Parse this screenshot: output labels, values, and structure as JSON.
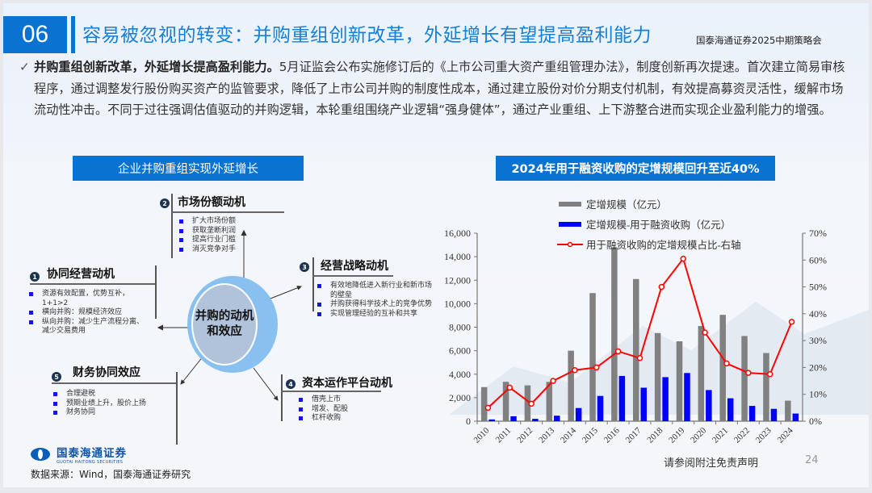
{
  "header": {
    "section_number": "06",
    "title": "容易被忽视的转变：并购重组创新改革，外延增长有望提高盈利能力",
    "event": "国泰海通证券2025中期策略会"
  },
  "body": {
    "check_icon": "✓",
    "bold_lead": "并购重组创新改革，外延增长提高盈利能力。",
    "text": "5月证监会公布实施修订后的《上市公司重大资产重组管理办法》，制度创新再次提速。首次建立简易审核程序，通过调整发行股份购买资产的监管要求，降低了上市公司并购的制度性成本，通过建立股份对价分期支付机制，有效提高募资灵活性，缓解市场流动性冲击。不同于过往强调估值驱动的并购逻辑，本轮重组围绕产业逻辑“强身健体”，通过产业重组、上下游整合进而实现企业盈利能力的增强。"
  },
  "left_panel": {
    "header": "企业并购重组实现外延增长",
    "center_label_1": "并购的动机",
    "center_label_2": "和效应",
    "nodes": [
      {
        "num": "1",
        "title": "协同经营动机",
        "items": [
          "资源有效配置，优势互补，1+1>2",
          "横向并购：规模经济效应",
          "纵向并购：减少生产流程分离、减少交易费用"
        ]
      },
      {
        "num": "2",
        "title": "市场份额动机",
        "items": [
          "扩大市场份额",
          "获取垄断利润",
          "提高行业门槛",
          "消灭竞争对手"
        ]
      },
      {
        "num": "3",
        "title": "经营战略动机",
        "items": [
          "有效地降低进入新行业和新市场的壁垒",
          "并购获得科学技术上的竞争优势",
          "实现管理经验的互补和共享"
        ]
      },
      {
        "num": "4",
        "title": "资本运作平台动机",
        "items": [
          "借壳上市",
          "增发、配股",
          "杠杆收购"
        ]
      },
      {
        "num": "5",
        "title": "财务协同效应",
        "items": [
          "合理避税",
          "预期业绩上升，股价上扬",
          "财务协同"
        ]
      }
    ]
  },
  "right_panel": {
    "header": "2024年用于融资收购的定增规模回升至近40%"
  },
  "chart_data": {
    "type": "bar",
    "title": "2024年用于融资收购的定增规模回升至近40%",
    "categories": [
      "2010",
      "2011",
      "2012",
      "2013",
      "2014",
      "2015",
      "2016",
      "2017",
      "2018",
      "2019",
      "2020",
      "2021",
      "2022",
      "2023",
      "2024"
    ],
    "series": [
      {
        "name": "定增规模（亿元）",
        "type": "bar",
        "axis": "left",
        "color": "#808080",
        "values": [
          2900,
          3350,
          3050,
          3350,
          6000,
          10900,
          14800,
          12100,
          7500,
          6800,
          8100,
          9050,
          7250,
          5800,
          1750
        ]
      },
      {
        "name": "定增规模-用于融资收购（亿元）",
        "type": "bar",
        "axis": "left",
        "color": "#0000ff",
        "values": [
          150,
          420,
          200,
          470,
          1120,
          2150,
          3850,
          2850,
          3750,
          4100,
          2650,
          1950,
          1300,
          1050,
          650
        ]
      },
      {
        "name": "用于融资收购的定增规模占比-右轴",
        "type": "line",
        "axis": "right",
        "color": "#ff0000",
        "values": [
          5,
          12.5,
          6.5,
          15,
          19,
          20,
          26,
          23.5,
          50,
          60.5,
          33,
          21.5,
          18,
          17.5,
          37
        ]
      }
    ],
    "left_axis": {
      "min": 0,
      "max": 16000,
      "ticks": [
        "0",
        "2,000",
        "4,000",
        "6,000",
        "8,000",
        "10,000",
        "12,000",
        "14,000",
        "16,000"
      ]
    },
    "right_axis": {
      "min": 0,
      "max": 70,
      "ticks": [
        "0%",
        "10%",
        "20%",
        "30%",
        "40%",
        "50%",
        "60%",
        "70%"
      ]
    },
    "grid": false,
    "legend_position": "top-left inside"
  },
  "footer": {
    "logo_cn": "国泰海通证券",
    "logo_en": "GUOTAI HAITONG SECURITIES",
    "source": "数据来源：Wind，国泰海通证券研究",
    "disclaimer": "请参阅附注免责声明",
    "page_number": "24"
  }
}
